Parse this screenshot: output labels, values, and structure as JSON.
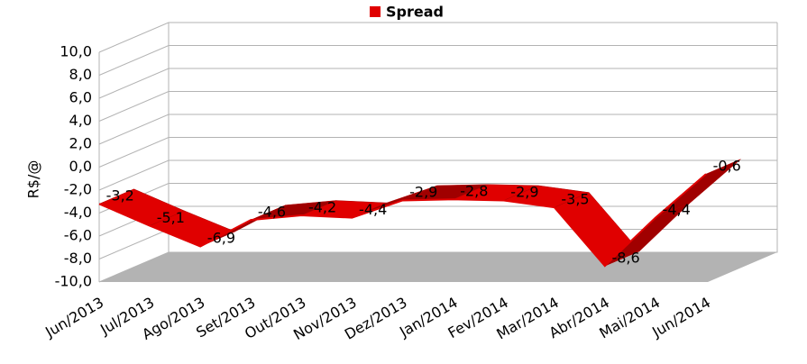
{
  "chart_data": {
    "type": "line3d",
    "y_label": "R$/@",
    "categories": [
      "Jun/2013",
      "Jul/2013",
      "Ago/2013",
      "Set/2013",
      "Out/2013",
      "Nov/2013",
      "Dez/2013",
      "Jan/2014",
      "Fev/2014",
      "Mar/2014",
      "Abr/2014",
      "Mai/2014",
      "Jun/2014"
    ],
    "series": [
      {
        "name": "Spread",
        "color": "#e00000",
        "values": [
          -3.2,
          -5.1,
          -6.9,
          -4.6,
          -4.2,
          -4.4,
          -2.9,
          -2.8,
          -2.9,
          -3.5,
          -8.6,
          -4.4,
          -0.6
        ],
        "value_labels": [
          "-3,2",
          "-5,1",
          "-6,9",
          "-4,6",
          "-4,2",
          "-4,4",
          "-2,9",
          "-2,8",
          "-2,9",
          "-3,5",
          "-8,6",
          "-4,4",
          "-0,6"
        ]
      }
    ],
    "ylim": [
      -10,
      10
    ],
    "yticks": [
      {
        "value": -10,
        "label": "-10,0"
      },
      {
        "value": -8,
        "label": "-8,0"
      },
      {
        "value": -6,
        "label": "-6,0"
      },
      {
        "value": -4,
        "label": "-4,0"
      },
      {
        "value": -2,
        "label": "-2,0"
      },
      {
        "value": 0,
        "label": "0,0"
      },
      {
        "value": 2,
        "label": "2,0"
      },
      {
        "value": 4,
        "label": "4,0"
      },
      {
        "value": 6,
        "label": "6,0"
      },
      {
        "value": 8,
        "label": "8,0"
      },
      {
        "value": 10,
        "label": "10,0"
      }
    ],
    "grid": true
  }
}
